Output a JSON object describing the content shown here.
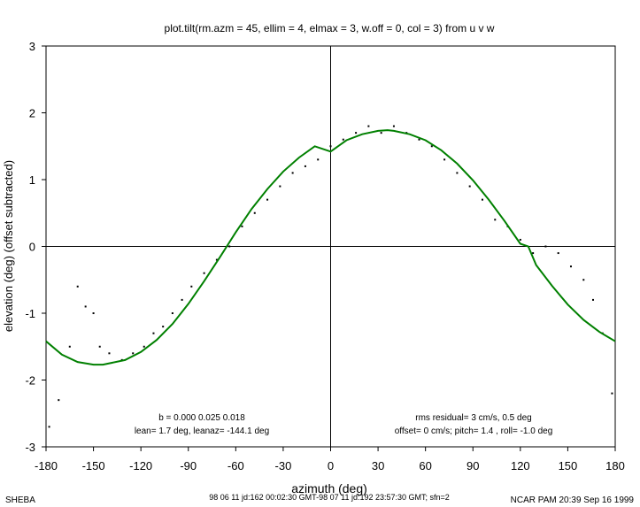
{
  "chart_data": {
    "type": "scatter",
    "title": "plot.tilt(rm.azm = 45, ellim = 4, elmax = 3, w.off = 0, col = 3) from u v w",
    "xlabel": "azimuth (deg)",
    "ylabel": "elevation (deg)  (offset subtracted)",
    "xlim": [
      -180,
      180
    ],
    "ylim": [
      -3,
      3
    ],
    "x_ticks": [
      -180,
      -150,
      -120,
      -90,
      -60,
      -30,
      0,
      30,
      60,
      90,
      120,
      150,
      180
    ],
    "y_ticks": [
      -3,
      -2,
      -1,
      0,
      1,
      2,
      3
    ],
    "grid": false,
    "zero_lines": true,
    "series": [
      {
        "kind": "points",
        "color": "#000000",
        "points": [
          [
            -178,
            -2.7
          ],
          [
            -172,
            -2.3
          ],
          [
            -165,
            -1.5
          ],
          [
            -160,
            -0.6
          ],
          [
            -155,
            -0.9
          ],
          [
            -150,
            -1.0
          ],
          [
            -146,
            -1.5
          ],
          [
            -140,
            -1.6
          ],
          [
            -132,
            -1.7
          ],
          [
            -125,
            -1.6
          ],
          [
            -118,
            -1.5
          ],
          [
            -112,
            -1.3
          ],
          [
            -106,
            -1.2
          ],
          [
            -100,
            -1.0
          ],
          [
            -94,
            -0.8
          ],
          [
            -88,
            -0.6
          ],
          [
            -80,
            -0.4
          ],
          [
            -72,
            -0.2
          ],
          [
            -64,
            0.0
          ],
          [
            -56,
            0.3
          ],
          [
            -48,
            0.5
          ],
          [
            -40,
            0.7
          ],
          [
            -32,
            0.9
          ],
          [
            -24,
            1.1
          ],
          [
            -16,
            1.2
          ],
          [
            -8,
            1.3
          ],
          [
            0,
            1.5
          ],
          [
            8,
            1.6
          ],
          [
            16,
            1.7
          ],
          [
            24,
            1.8
          ],
          [
            32,
            1.7
          ],
          [
            40,
            1.8
          ],
          [
            48,
            1.7
          ],
          [
            56,
            1.6
          ],
          [
            64,
            1.5
          ],
          [
            72,
            1.3
          ],
          [
            80,
            1.1
          ],
          [
            88,
            0.9
          ],
          [
            96,
            0.7
          ],
          [
            104,
            0.4
          ],
          [
            112,
            0.3
          ],
          [
            120,
            0.1
          ],
          [
            128,
            -0.1
          ],
          [
            136,
            0.0
          ],
          [
            144,
            -0.1
          ],
          [
            152,
            -0.3
          ],
          [
            160,
            -0.5
          ],
          [
            166,
            -0.8
          ],
          [
            172,
            -1.3
          ],
          [
            178,
            -2.2
          ]
        ]
      },
      {
        "kind": "fit",
        "color": "#008000",
        "points": [
          [
            -180,
            -1.42
          ],
          [
            -170,
            -1.62
          ],
          [
            -160,
            -1.73
          ],
          [
            -150,
            -1.77
          ],
          [
            -144,
            -1.77
          ],
          [
            -130,
            -1.7
          ],
          [
            -120,
            -1.58
          ],
          [
            -110,
            -1.4
          ],
          [
            -100,
            -1.16
          ],
          [
            -90,
            -0.86
          ],
          [
            -80,
            -0.52
          ],
          [
            -70,
            -0.16
          ],
          [
            -60,
            0.21
          ],
          [
            -50,
            0.56
          ],
          [
            -40,
            0.86
          ],
          [
            -30,
            1.12
          ],
          [
            -20,
            1.33
          ],
          [
            -10,
            1.5
          ],
          [
            0,
            1.42
          ],
          [
            10,
            1.59
          ],
          [
            20,
            1.68
          ],
          [
            30,
            1.73
          ],
          [
            36,
            1.74
          ],
          [
            40,
            1.73
          ],
          [
            50,
            1.68
          ],
          [
            60,
            1.59
          ],
          [
            70,
            1.44
          ],
          [
            80,
            1.24
          ],
          [
            90,
            0.99
          ],
          [
            100,
            0.7
          ],
          [
            110,
            0.38
          ],
          [
            120,
            0.04
          ],
          [
            125,
            0.0
          ],
          [
            130,
            -0.28
          ],
          [
            140,
            -0.59
          ],
          [
            150,
            -0.87
          ],
          [
            160,
            -1.1
          ],
          [
            170,
            -1.28
          ],
          [
            180,
            -1.42
          ]
        ]
      }
    ],
    "annotations": {
      "left": [
        "b = 0.000 0.025 0.018",
        "lean= 1.7 deg, leanaz= -144.1 deg"
      ],
      "right": [
        "rms residual= 3 cm/s, 0.5 deg",
        "offset= 0 cm/s; pitch=  1.4 , roll= -1.0 deg"
      ]
    }
  },
  "footer": {
    "left": "SHEBA",
    "center": "98 06 11 jd:162 00:02:30 GMT-98 07 11 jd:192 23:57:30 GMT; sfn=2",
    "right": "NCAR PAM 20:39 Sep 16 1999"
  }
}
